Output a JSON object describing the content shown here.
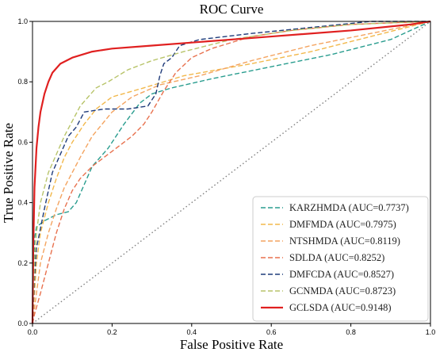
{
  "chart_data": {
    "type": "line",
    "title": "ROC Curve",
    "xlabel": "False Positive Rate",
    "ylabel": "True Positive Rate",
    "xlim": [
      0,
      1
    ],
    "ylim": [
      0,
      1
    ],
    "xticks": [
      "0.0",
      "0.2",
      "0.4",
      "0.6",
      "0.8",
      "1.0"
    ],
    "yticks": [
      "0.0",
      "0.2",
      "0.4",
      "0.6",
      "0.8",
      "1.0"
    ],
    "grid": false,
    "legend_position": "lower-right",
    "diagonal": {
      "color": "#808080",
      "style": "dotted"
    },
    "series": [
      {
        "name": "KARZHMDA (AUC=0.7737)",
        "color": "#2a9d8f",
        "dash": "dashed",
        "points": [
          [
            0,
            0
          ],
          [
            0.005,
            0.28
          ],
          [
            0.01,
            0.32
          ],
          [
            0.03,
            0.34
          ],
          [
            0.06,
            0.36
          ],
          [
            0.09,
            0.37
          ],
          [
            0.11,
            0.4
          ],
          [
            0.13,
            0.46
          ],
          [
            0.15,
            0.52
          ],
          [
            0.17,
            0.55
          ],
          [
            0.19,
            0.58
          ],
          [
            0.21,
            0.62
          ],
          [
            0.23,
            0.66
          ],
          [
            0.27,
            0.73
          ],
          [
            0.3,
            0.76
          ],
          [
            0.35,
            0.78
          ],
          [
            0.45,
            0.81
          ],
          [
            0.6,
            0.85
          ],
          [
            0.75,
            0.89
          ],
          [
            0.9,
            0.94
          ],
          [
            1,
            1
          ]
        ]
      },
      {
        "name": "DMFMDA (AUC=0.7975)",
        "color": "#f2b84b",
        "dash": "dashed",
        "points": [
          [
            0,
            0
          ],
          [
            0.005,
            0.1
          ],
          [
            0.01,
            0.2
          ],
          [
            0.02,
            0.3
          ],
          [
            0.04,
            0.4
          ],
          [
            0.06,
            0.48
          ],
          [
            0.08,
            0.55
          ],
          [
            0.1,
            0.6
          ],
          [
            0.13,
            0.66
          ],
          [
            0.16,
            0.71
          ],
          [
            0.2,
            0.75
          ],
          [
            0.28,
            0.78
          ],
          [
            0.38,
            0.82
          ],
          [
            0.55,
            0.86
          ],
          [
            0.7,
            0.9
          ],
          [
            0.85,
            0.95
          ],
          [
            1,
            1
          ]
        ]
      },
      {
        "name": "NTSHMDA (AUC=0.8119)",
        "color": "#f4a460",
        "dash": "dashed",
        "points": [
          [
            0,
            0
          ],
          [
            0.01,
            0.1
          ],
          [
            0.02,
            0.2
          ],
          [
            0.04,
            0.3
          ],
          [
            0.06,
            0.38
          ],
          [
            0.08,
            0.45
          ],
          [
            0.1,
            0.5
          ],
          [
            0.12,
            0.55
          ],
          [
            0.15,
            0.62
          ],
          [
            0.2,
            0.7
          ],
          [
            0.25,
            0.75
          ],
          [
            0.32,
            0.79
          ],
          [
            0.42,
            0.82
          ],
          [
            0.55,
            0.87
          ],
          [
            0.7,
            0.92
          ],
          [
            0.85,
            0.96
          ],
          [
            1,
            1
          ]
        ]
      },
      {
        "name": "SDLDA (AUC=0.8252)",
        "color": "#e8714e",
        "dash": "dashed",
        "points": [
          [
            0,
            0
          ],
          [
            0.005,
            0.03
          ],
          [
            0.02,
            0.1
          ],
          [
            0.04,
            0.2
          ],
          [
            0.06,
            0.3
          ],
          [
            0.08,
            0.38
          ],
          [
            0.1,
            0.44
          ],
          [
            0.12,
            0.48
          ],
          [
            0.15,
            0.52
          ],
          [
            0.18,
            0.55
          ],
          [
            0.21,
            0.58
          ],
          [
            0.25,
            0.62
          ],
          [
            0.28,
            0.66
          ],
          [
            0.3,
            0.7
          ],
          [
            0.33,
            0.77
          ],
          [
            0.36,
            0.83
          ],
          [
            0.4,
            0.88
          ],
          [
            0.45,
            0.91
          ],
          [
            0.55,
            0.95
          ],
          [
            0.65,
            0.97
          ],
          [
            0.8,
            0.99
          ],
          [
            1,
            1
          ]
        ]
      },
      {
        "name": "DMFCDA (AUC=0.8527)",
        "color": "#1f3b7a",
        "dash": "dashed",
        "points": [
          [
            0,
            0
          ],
          [
            0.005,
            0.15
          ],
          [
            0.01,
            0.25
          ],
          [
            0.03,
            0.38
          ],
          [
            0.05,
            0.5
          ],
          [
            0.07,
            0.56
          ],
          [
            0.09,
            0.62
          ],
          [
            0.11,
            0.65
          ],
          [
            0.13,
            0.7
          ],
          [
            0.18,
            0.71
          ],
          [
            0.24,
            0.71
          ],
          [
            0.29,
            0.72
          ],
          [
            0.31,
            0.76
          ],
          [
            0.32,
            0.82
          ],
          [
            0.33,
            0.86
          ],
          [
            0.35,
            0.88
          ],
          [
            0.37,
            0.92
          ],
          [
            0.42,
            0.94
          ],
          [
            0.55,
            0.96
          ],
          [
            0.7,
            0.98
          ],
          [
            0.85,
            1.0
          ],
          [
            1,
            1
          ]
        ]
      },
      {
        "name": "GCNMDA (AUC=0.8723)",
        "color": "#b8c46a",
        "dash": "dashed",
        "points": [
          [
            0,
            0
          ],
          [
            0.005,
            0.2
          ],
          [
            0.01,
            0.3
          ],
          [
            0.02,
            0.4
          ],
          [
            0.04,
            0.5
          ],
          [
            0.06,
            0.56
          ],
          [
            0.08,
            0.62
          ],
          [
            0.1,
            0.67
          ],
          [
            0.12,
            0.72
          ],
          [
            0.14,
            0.75
          ],
          [
            0.16,
            0.78
          ],
          [
            0.19,
            0.8
          ],
          [
            0.24,
            0.84
          ],
          [
            0.3,
            0.87
          ],
          [
            0.38,
            0.9
          ],
          [
            0.5,
            0.94
          ],
          [
            0.65,
            0.97
          ],
          [
            0.8,
            0.99
          ],
          [
            1,
            1
          ]
        ]
      },
      {
        "name": "GCLSDA (AUC=0.9148)",
        "color": "#e02020",
        "dash": "solid",
        "points": [
          [
            0,
            0
          ],
          [
            0.002,
            0.25
          ],
          [
            0.005,
            0.45
          ],
          [
            0.01,
            0.58
          ],
          [
            0.015,
            0.65
          ],
          [
            0.02,
            0.7
          ],
          [
            0.03,
            0.76
          ],
          [
            0.04,
            0.8
          ],
          [
            0.05,
            0.83
          ],
          [
            0.07,
            0.86
          ],
          [
            0.1,
            0.88
          ],
          [
            0.15,
            0.9
          ],
          [
            0.2,
            0.91
          ],
          [
            0.3,
            0.92
          ],
          [
            0.4,
            0.93
          ],
          [
            0.6,
            0.95
          ],
          [
            0.8,
            0.97
          ],
          [
            0.95,
            0.99
          ],
          [
            1,
            1
          ]
        ]
      }
    ]
  }
}
